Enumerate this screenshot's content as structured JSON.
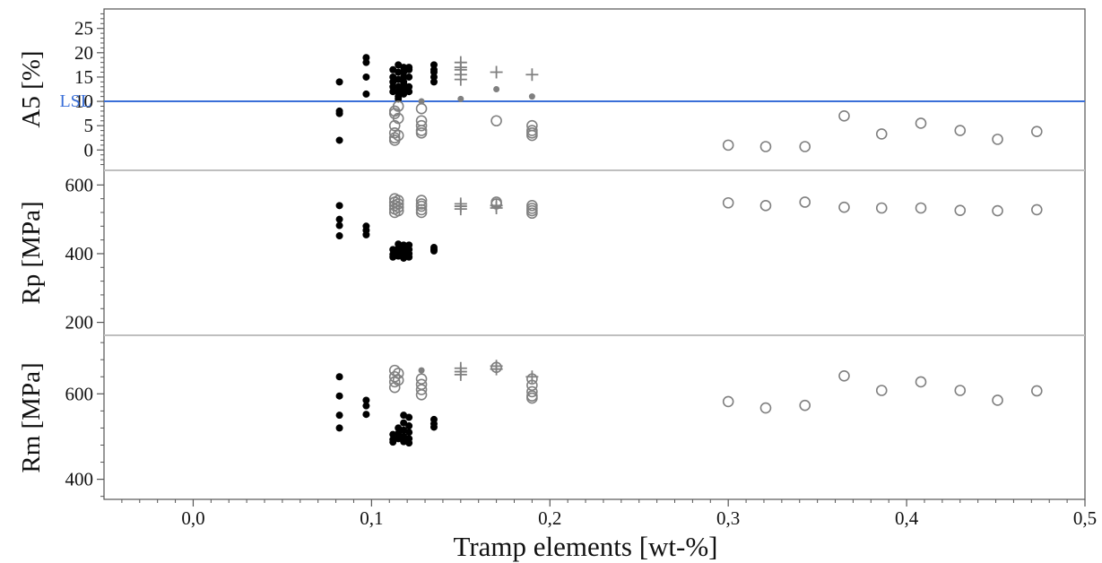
{
  "colors": {
    "dark": "#000000",
    "grey": "#808080",
    "lsl": "#3a6fd8",
    "frame": "#555555",
    "divider": "#bfbfbf"
  },
  "chart_data": {
    "type": "scatter",
    "xlabel": "Tramp elements [wt-%]",
    "xlim": [
      -0.05,
      0.5
    ],
    "xticks": [
      {
        "value": 0.0,
        "label": "0,0"
      },
      {
        "value": 0.1,
        "label": "0,1"
      },
      {
        "value": 0.2,
        "label": "0,2"
      },
      {
        "value": 0.3,
        "label": "0,3"
      },
      {
        "value": 0.4,
        "label": "0,4"
      },
      {
        "value": 0.5,
        "label": "0,5"
      }
    ],
    "grid": false,
    "panels": [
      {
        "ylabel": "A5 [%]",
        "ylim": [
          -4,
          29
        ],
        "yticks": [
          0,
          5,
          10,
          15,
          20,
          25
        ],
        "reference_line": {
          "label": "LSL",
          "value": 10
        },
        "series": [
          {
            "marker": "filled-dot",
            "color": "dark",
            "points": [
              [
                0.082,
                14
              ],
              [
                0.082,
                8
              ],
              [
                0.082,
                7.5
              ],
              [
                0.082,
                2
              ],
              [
                0.097,
                19
              ],
              [
                0.097,
                18
              ],
              [
                0.097,
                15
              ],
              [
                0.097,
                11.5
              ],
              [
                0.112,
                16.5
              ],
              [
                0.112,
                15
              ],
              [
                0.112,
                14
              ],
              [
                0.112,
                13
              ],
              [
                0.112,
                12
              ],
              [
                0.115,
                17.5
              ],
              [
                0.115,
                16
              ],
              [
                0.115,
                14.5
              ],
              [
                0.115,
                13
              ],
              [
                0.115,
                12
              ],
              [
                0.115,
                11
              ],
              [
                0.115,
                10.5
              ],
              [
                0.118,
                17
              ],
              [
                0.118,
                16
              ],
              [
                0.118,
                15
              ],
              [
                0.118,
                14
              ],
              [
                0.118,
                13.5
              ],
              [
                0.118,
                12.5
              ],
              [
                0.118,
                11.5
              ],
              [
                0.121,
                17
              ],
              [
                0.121,
                16.5
              ],
              [
                0.121,
                15
              ],
              [
                0.121,
                13
              ],
              [
                0.121,
                12
              ],
              [
                0.135,
                17.5
              ],
              [
                0.135,
                16.5
              ],
              [
                0.135,
                16
              ],
              [
                0.135,
                15
              ],
              [
                0.135,
                14
              ]
            ]
          },
          {
            "marker": "filled-dot",
            "color": "grey",
            "points": [
              [
                0.128,
                10
              ],
              [
                0.15,
                10.5
              ],
              [
                0.17,
                12.5
              ],
              [
                0.19,
                11
              ]
            ]
          },
          {
            "marker": "open-circle",
            "color": "grey",
            "points": [
              [
                0.113,
                8
              ],
              [
                0.113,
                7.5
              ],
              [
                0.113,
                5
              ],
              [
                0.113,
                3.5
              ],
              [
                0.113,
                2.5
              ],
              [
                0.113,
                2
              ],
              [
                0.115,
                9
              ],
              [
                0.115,
                6.5
              ],
              [
                0.115,
                3
              ],
              [
                0.128,
                8.5
              ],
              [
                0.128,
                6
              ],
              [
                0.128,
                5
              ],
              [
                0.128,
                4
              ],
              [
                0.128,
                3.5
              ],
              [
                0.17,
                6
              ],
              [
                0.19,
                5
              ],
              [
                0.19,
                4
              ],
              [
                0.19,
                3.5
              ],
              [
                0.19,
                3
              ],
              [
                0.3,
                1
              ],
              [
                0.321,
                0.7
              ],
              [
                0.343,
                0.7
              ],
              [
                0.365,
                7
              ],
              [
                0.386,
                3.3
              ],
              [
                0.408,
                5.5
              ],
              [
                0.43,
                4
              ],
              [
                0.451,
                2.2
              ],
              [
                0.473,
                3.8
              ]
            ]
          },
          {
            "marker": "plus",
            "color": "grey",
            "points": [
              [
                0.15,
                18
              ],
              [
                0.15,
                17
              ],
              [
                0.15,
                16.5
              ],
              [
                0.15,
                15.5
              ],
              [
                0.15,
                14.5
              ],
              [
                0.17,
                16
              ],
              [
                0.19,
                15.5
              ]
            ]
          }
        ]
      },
      {
        "ylabel": "Rp [MPa]",
        "ylim": [
          165,
          640
        ],
        "yticks": [
          200,
          400,
          600
        ],
        "series": [
          {
            "marker": "filled-dot",
            "color": "dark",
            "points": [
              [
                0.082,
                540
              ],
              [
                0.082,
                500
              ],
              [
                0.082,
                482
              ],
              [
                0.082,
                452
              ],
              [
                0.097,
                480
              ],
              [
                0.097,
                468
              ],
              [
                0.097,
                455
              ],
              [
                0.112,
                412
              ],
              [
                0.112,
                398
              ],
              [
                0.112,
                390
              ],
              [
                0.115,
                428
              ],
              [
                0.115,
                415
              ],
              [
                0.115,
                402
              ],
              [
                0.115,
                393
              ],
              [
                0.118,
                425
              ],
              [
                0.118,
                410
              ],
              [
                0.118,
                398
              ],
              [
                0.118,
                387
              ],
              [
                0.121,
                425
              ],
              [
                0.121,
                412
              ],
              [
                0.121,
                400
              ],
              [
                0.121,
                390
              ],
              [
                0.135,
                418
              ],
              [
                0.135,
                412
              ],
              [
                0.135,
                408
              ]
            ]
          },
          {
            "marker": "open-circle",
            "color": "grey",
            "points": [
              [
                0.113,
                560
              ],
              [
                0.113,
                550
              ],
              [
                0.113,
                540
              ],
              [
                0.113,
                530
              ],
              [
                0.113,
                520
              ],
              [
                0.115,
                555
              ],
              [
                0.115,
                545
              ],
              [
                0.115,
                535
              ],
              [
                0.115,
                525
              ],
              [
                0.128,
                555
              ],
              [
                0.128,
                545
              ],
              [
                0.128,
                538
              ],
              [
                0.128,
                528
              ],
              [
                0.128,
                520
              ],
              [
                0.17,
                550
              ],
              [
                0.17,
                545
              ],
              [
                0.19,
                540
              ],
              [
                0.19,
                532
              ],
              [
                0.19,
                525
              ],
              [
                0.19,
                518
              ],
              [
                0.3,
                548
              ],
              [
                0.321,
                540
              ],
              [
                0.343,
                550
              ],
              [
                0.365,
                535
              ],
              [
                0.386,
                533
              ],
              [
                0.408,
                533
              ],
              [
                0.43,
                526
              ],
              [
                0.451,
                525
              ],
              [
                0.473,
                528
              ]
            ]
          },
          {
            "marker": "plus",
            "color": "grey",
            "points": [
              [
                0.15,
                545
              ],
              [
                0.15,
                538
              ],
              [
                0.15,
                530
              ],
              [
                0.17,
                540
              ],
              [
                0.17,
                533
              ]
            ]
          }
        ]
      },
      {
        "ylabel": "Rm [MPa]",
        "ylim": [
          353,
          735
        ],
        "yticks": [
          400,
          600
        ],
        "series": [
          {
            "marker": "filled-dot",
            "color": "dark",
            "points": [
              [
                0.082,
                640
              ],
              [
                0.082,
                595
              ],
              [
                0.082,
                550
              ],
              [
                0.082,
                520
              ],
              [
                0.097,
                585
              ],
              [
                0.097,
                572
              ],
              [
                0.097,
                552
              ],
              [
                0.112,
                505
              ],
              [
                0.112,
                493
              ],
              [
                0.112,
                487
              ],
              [
                0.115,
                520
              ],
              [
                0.115,
                507
              ],
              [
                0.115,
                495
              ],
              [
                0.118,
                550
              ],
              [
                0.118,
                532
              ],
              [
                0.118,
                515
              ],
              [
                0.118,
                500
              ],
              [
                0.118,
                488
              ],
              [
                0.121,
                545
              ],
              [
                0.121,
                525
              ],
              [
                0.121,
                510
              ],
              [
                0.121,
                495
              ],
              [
                0.121,
                485
              ],
              [
                0.135,
                540
              ],
              [
                0.135,
                530
              ],
              [
                0.135,
                522
              ]
            ]
          },
          {
            "marker": "filled-dot",
            "color": "grey",
            "points": [
              [
                0.128,
                655
              ]
            ]
          },
          {
            "marker": "open-circle",
            "color": "grey",
            "points": [
              [
                0.113,
                655
              ],
              [
                0.113,
                640
              ],
              [
                0.113,
                628
              ],
              [
                0.113,
                615
              ],
              [
                0.115,
                648
              ],
              [
                0.115,
                632
              ],
              [
                0.128,
                635
              ],
              [
                0.128,
                622
              ],
              [
                0.128,
                610
              ],
              [
                0.128,
                598
              ],
              [
                0.17,
                662
              ],
              [
                0.19,
                635
              ],
              [
                0.19,
                620
              ],
              [
                0.19,
                605
              ],
              [
                0.19,
                595
              ],
              [
                0.19,
                590
              ],
              [
                0.3,
                582
              ],
              [
                0.321,
                567
              ],
              [
                0.343,
                573
              ],
              [
                0.365,
                642
              ],
              [
                0.386,
                608
              ],
              [
                0.408,
                628
              ],
              [
                0.43,
                608
              ],
              [
                0.451,
                585
              ],
              [
                0.473,
                607
              ]
            ]
          },
          {
            "marker": "plus",
            "color": "grey",
            "points": [
              [
                0.15,
                660
              ],
              [
                0.15,
                652
              ],
              [
                0.15,
                645
              ],
              [
                0.17,
                665
              ],
              [
                0.17,
                658
              ],
              [
                0.19,
                640
              ]
            ]
          }
        ]
      }
    ]
  }
}
